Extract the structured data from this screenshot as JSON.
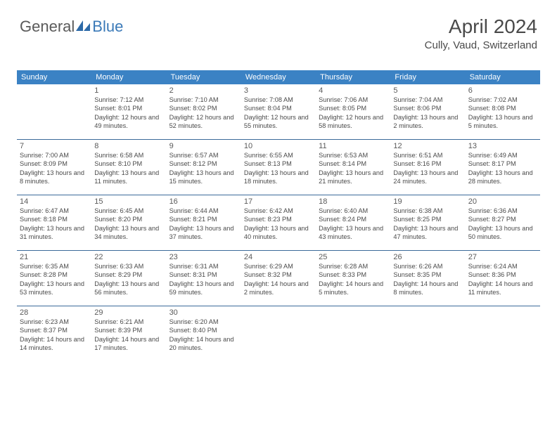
{
  "logo": {
    "text1": "General",
    "text2": "Blue",
    "iconColor": "#2d6aa8"
  },
  "header": {
    "title": "April 2024",
    "location": "Cully, Vaud, Switzerland"
  },
  "colors": {
    "headerBg": "#3b82c4",
    "headerText": "#ffffff",
    "rowBorder": "#3b6a9a",
    "dayText": "#4a4a4a",
    "dayNumber": "#5a5a5a"
  },
  "weekdays": [
    "Sunday",
    "Monday",
    "Tuesday",
    "Wednesday",
    "Thursday",
    "Friday",
    "Saturday"
  ],
  "weeks": [
    [
      null,
      {
        "n": "1",
        "sr": "7:12 AM",
        "ss": "8:01 PM",
        "dl": "12 hours and 49 minutes."
      },
      {
        "n": "2",
        "sr": "7:10 AM",
        "ss": "8:02 PM",
        "dl": "12 hours and 52 minutes."
      },
      {
        "n": "3",
        "sr": "7:08 AM",
        "ss": "8:04 PM",
        "dl": "12 hours and 55 minutes."
      },
      {
        "n": "4",
        "sr": "7:06 AM",
        "ss": "8:05 PM",
        "dl": "12 hours and 58 minutes."
      },
      {
        "n": "5",
        "sr": "7:04 AM",
        "ss": "8:06 PM",
        "dl": "13 hours and 2 minutes."
      },
      {
        "n": "6",
        "sr": "7:02 AM",
        "ss": "8:08 PM",
        "dl": "13 hours and 5 minutes."
      }
    ],
    [
      {
        "n": "7",
        "sr": "7:00 AM",
        "ss": "8:09 PM",
        "dl": "13 hours and 8 minutes."
      },
      {
        "n": "8",
        "sr": "6:58 AM",
        "ss": "8:10 PM",
        "dl": "13 hours and 11 minutes."
      },
      {
        "n": "9",
        "sr": "6:57 AM",
        "ss": "8:12 PM",
        "dl": "13 hours and 15 minutes."
      },
      {
        "n": "10",
        "sr": "6:55 AM",
        "ss": "8:13 PM",
        "dl": "13 hours and 18 minutes."
      },
      {
        "n": "11",
        "sr": "6:53 AM",
        "ss": "8:14 PM",
        "dl": "13 hours and 21 minutes."
      },
      {
        "n": "12",
        "sr": "6:51 AM",
        "ss": "8:16 PM",
        "dl": "13 hours and 24 minutes."
      },
      {
        "n": "13",
        "sr": "6:49 AM",
        "ss": "8:17 PM",
        "dl": "13 hours and 28 minutes."
      }
    ],
    [
      {
        "n": "14",
        "sr": "6:47 AM",
        "ss": "8:18 PM",
        "dl": "13 hours and 31 minutes."
      },
      {
        "n": "15",
        "sr": "6:45 AM",
        "ss": "8:20 PM",
        "dl": "13 hours and 34 minutes."
      },
      {
        "n": "16",
        "sr": "6:44 AM",
        "ss": "8:21 PM",
        "dl": "13 hours and 37 minutes."
      },
      {
        "n": "17",
        "sr": "6:42 AM",
        "ss": "8:23 PM",
        "dl": "13 hours and 40 minutes."
      },
      {
        "n": "18",
        "sr": "6:40 AM",
        "ss": "8:24 PM",
        "dl": "13 hours and 43 minutes."
      },
      {
        "n": "19",
        "sr": "6:38 AM",
        "ss": "8:25 PM",
        "dl": "13 hours and 47 minutes."
      },
      {
        "n": "20",
        "sr": "6:36 AM",
        "ss": "8:27 PM",
        "dl": "13 hours and 50 minutes."
      }
    ],
    [
      {
        "n": "21",
        "sr": "6:35 AM",
        "ss": "8:28 PM",
        "dl": "13 hours and 53 minutes."
      },
      {
        "n": "22",
        "sr": "6:33 AM",
        "ss": "8:29 PM",
        "dl": "13 hours and 56 minutes."
      },
      {
        "n": "23",
        "sr": "6:31 AM",
        "ss": "8:31 PM",
        "dl": "13 hours and 59 minutes."
      },
      {
        "n": "24",
        "sr": "6:29 AM",
        "ss": "8:32 PM",
        "dl": "14 hours and 2 minutes."
      },
      {
        "n": "25",
        "sr": "6:28 AM",
        "ss": "8:33 PM",
        "dl": "14 hours and 5 minutes."
      },
      {
        "n": "26",
        "sr": "6:26 AM",
        "ss": "8:35 PM",
        "dl": "14 hours and 8 minutes."
      },
      {
        "n": "27",
        "sr": "6:24 AM",
        "ss": "8:36 PM",
        "dl": "14 hours and 11 minutes."
      }
    ],
    [
      {
        "n": "28",
        "sr": "6:23 AM",
        "ss": "8:37 PM",
        "dl": "14 hours and 14 minutes."
      },
      {
        "n": "29",
        "sr": "6:21 AM",
        "ss": "8:39 PM",
        "dl": "14 hours and 17 minutes."
      },
      {
        "n": "30",
        "sr": "6:20 AM",
        "ss": "8:40 PM",
        "dl": "14 hours and 20 minutes."
      },
      null,
      null,
      null,
      null
    ]
  ],
  "labels": {
    "sunrise": "Sunrise:",
    "sunset": "Sunset:",
    "daylight": "Daylight:"
  }
}
